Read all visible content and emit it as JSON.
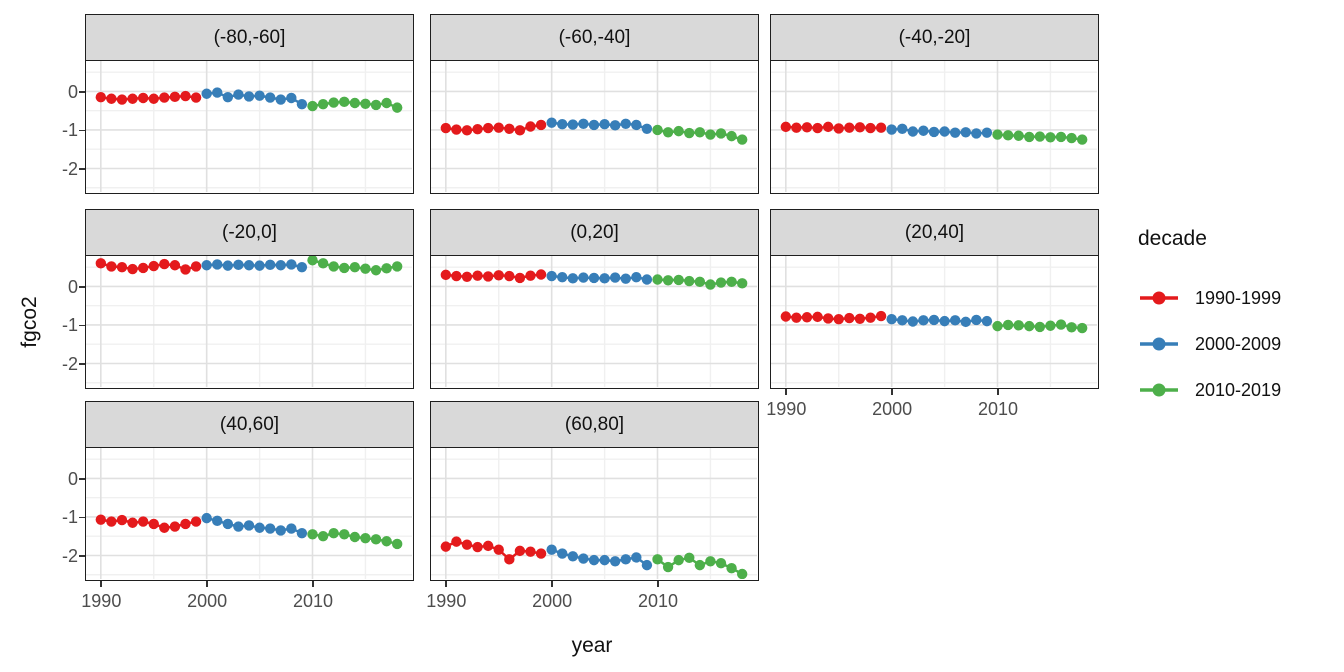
{
  "chart_data": {
    "type": "scatter",
    "title": "",
    "xlabel": "year",
    "ylabel": "fgco2",
    "legend": {
      "title": "decade",
      "position": "right"
    },
    "xlim": [
      1988.6,
      2019.4
    ],
    "ylim": [
      -2.61,
      0.79
    ],
    "x_ticks": [
      1990,
      2000,
      2010
    ],
    "x_tick_labels": [
      "1990",
      "2000",
      "2010"
    ],
    "x_minor": [
      1995,
      2005,
      2015
    ],
    "y_ticks": [
      0,
      -1,
      -2
    ],
    "y_tick_labels": [
      "0",
      "-1",
      "-2"
    ],
    "y_minor": [
      0.5,
      -0.5,
      -1.5,
      -2.5
    ],
    "grid": true,
    "colors": {
      "strip_fill": "#D9D9D9",
      "panel_border": "#1f1f1f",
      "grid_major": "#E0E0E0",
      "grid_minor": "#F0F0F0",
      "axis_text": "#4D4D4D",
      "tick_mark": "#333333"
    },
    "decades": [
      {
        "label": "1990-1999",
        "color": "#E41A1C",
        "start": 1990,
        "end": 1999
      },
      {
        "label": "2000-2009",
        "color": "#377EB8",
        "start": 2000,
        "end": 2009
      },
      {
        "label": "2010-2019",
        "color": "#4DAF4A",
        "start": 2010,
        "end": 2019
      }
    ],
    "years": [
      1990,
      1991,
      1992,
      1993,
      1994,
      1995,
      1996,
      1997,
      1998,
      1999,
      2000,
      2001,
      2002,
      2003,
      2004,
      2005,
      2006,
      2007,
      2008,
      2009,
      2010,
      2011,
      2012,
      2013,
      2014,
      2015,
      2016,
      2017,
      2018
    ],
    "facets": [
      {
        "label": "(-80,-60]",
        "values": [
          -0.15,
          -0.19,
          -0.21,
          -0.19,
          -0.17,
          -0.19,
          -0.16,
          -0.14,
          -0.12,
          -0.16,
          -0.06,
          -0.03,
          -0.15,
          -0.08,
          -0.13,
          -0.11,
          -0.16,
          -0.21,
          -0.17,
          -0.33,
          -0.38,
          -0.33,
          -0.29,
          -0.27,
          -0.3,
          -0.32,
          -0.35,
          -0.3,
          -0.42
        ]
      },
      {
        "label": "(-60,-40]",
        "values": [
          -0.95,
          -0.99,
          -1.01,
          -0.98,
          -0.95,
          -0.94,
          -0.97,
          -1.01,
          -0.91,
          -0.87,
          -0.81,
          -0.85,
          -0.86,
          -0.84,
          -0.87,
          -0.85,
          -0.88,
          -0.84,
          -0.87,
          -0.97,
          -1.0,
          -1.06,
          -1.03,
          -1.08,
          -1.06,
          -1.12,
          -1.09,
          -1.16,
          -1.25
        ]
      },
      {
        "label": "(-40,-20]",
        "values": [
          -0.92,
          -0.94,
          -0.93,
          -0.95,
          -0.92,
          -0.96,
          -0.94,
          -0.93,
          -0.95,
          -0.94,
          -0.99,
          -0.97,
          -1.04,
          -1.02,
          -1.05,
          -1.04,
          -1.07,
          -1.06,
          -1.09,
          -1.07,
          -1.12,
          -1.14,
          -1.15,
          -1.18,
          -1.17,
          -1.19,
          -1.18,
          -1.21,
          -1.25
        ]
      },
      {
        "label": "(-20,0]",
        "values": [
          0.6,
          0.52,
          0.5,
          0.45,
          0.48,
          0.53,
          0.58,
          0.55,
          0.44,
          0.52,
          0.55,
          0.57,
          0.54,
          0.56,
          0.55,
          0.54,
          0.56,
          0.55,
          0.57,
          0.5,
          0.68,
          0.6,
          0.52,
          0.48,
          0.5,
          0.46,
          0.42,
          0.47,
          0.52
        ]
      },
      {
        "label": "(0,20]",
        "values": [
          0.3,
          0.27,
          0.25,
          0.28,
          0.26,
          0.29,
          0.27,
          0.22,
          0.28,
          0.31,
          0.27,
          0.24,
          0.21,
          0.23,
          0.22,
          0.21,
          0.23,
          0.2,
          0.24,
          0.18,
          0.18,
          0.16,
          0.17,
          0.14,
          0.12,
          0.05,
          0.1,
          0.12,
          0.08
        ]
      },
      {
        "label": "(20,40]",
        "values": [
          -0.78,
          -0.81,
          -0.8,
          -0.79,
          -0.83,
          -0.85,
          -0.82,
          -0.84,
          -0.81,
          -0.77,
          -0.85,
          -0.88,
          -0.91,
          -0.88,
          -0.87,
          -0.9,
          -0.88,
          -0.92,
          -0.87,
          -0.9,
          -1.03,
          -1.0,
          -1.01,
          -1.03,
          -1.05,
          -1.02,
          -0.99,
          -1.06,
          -1.08
        ]
      },
      {
        "label": "(40,60]",
        "values": [
          -1.07,
          -1.12,
          -1.08,
          -1.15,
          -1.12,
          -1.18,
          -1.28,
          -1.25,
          -1.18,
          -1.12,
          -1.03,
          -1.1,
          -1.18,
          -1.25,
          -1.22,
          -1.28,
          -1.3,
          -1.35,
          -1.3,
          -1.42,
          -1.45,
          -1.5,
          -1.42,
          -1.45,
          -1.52,
          -1.55,
          -1.58,
          -1.63,
          -1.7
        ]
      },
      {
        "label": "(60,80]",
        "values": [
          -1.77,
          -1.64,
          -1.72,
          -1.78,
          -1.75,
          -1.85,
          -2.1,
          -1.88,
          -1.9,
          -1.95,
          -1.85,
          -1.95,
          -2.02,
          -2.08,
          -2.12,
          -2.12,
          -2.15,
          -2.1,
          -2.05,
          -2.25,
          -2.1,
          -2.3,
          -2.12,
          -2.06,
          -2.25,
          -2.15,
          -2.2,
          -2.33,
          -2.48
        ]
      }
    ]
  }
}
